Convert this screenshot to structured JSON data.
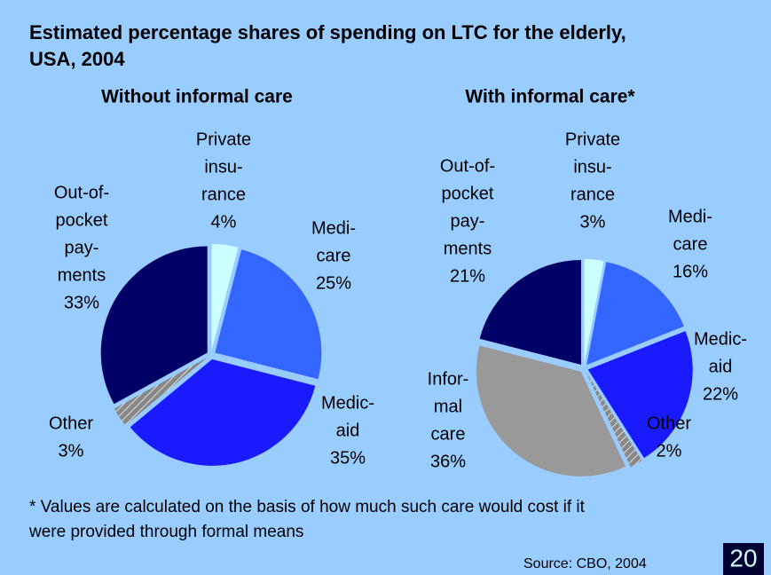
{
  "title": [
    "Estimated percentage shares of spending on LTC for the elderly,",
    "USA, 2004"
  ],
  "chart_data": [
    {
      "type": "pie",
      "title": "Without informal care",
      "categories": [
        [
          "Private",
          "insu-",
          "rance"
        ],
        [
          "Medi-",
          "care"
        ],
        [
          "Medic-",
          "aid"
        ],
        [
          "Other"
        ],
        [
          "Out-of-",
          "pocket",
          "pay-",
          "ments"
        ]
      ],
      "values": [
        4,
        25,
        35,
        3,
        33
      ],
      "value_labels": [
        "4%",
        "25%",
        "35%",
        "3%",
        "33%"
      ],
      "colors": [
        "#ccffff",
        "#3366ff",
        "#1a1aff",
        "hatch",
        "#000066"
      ]
    },
    {
      "type": "pie",
      "title": "With informal care*",
      "categories": [
        [
          "Private",
          "insu-",
          "rance"
        ],
        [
          "Medi-",
          "care"
        ],
        [
          "Medic-",
          "aid"
        ],
        [
          "Other"
        ],
        [
          "Infor-",
          "mal",
          "care"
        ],
        [
          "Out-of-",
          "pocket",
          "pay-",
          "ments"
        ]
      ],
      "values": [
        3,
        16,
        22,
        2,
        36,
        21
      ],
      "value_labels": [
        "3%",
        "16%",
        "22%",
        "2%",
        "36%",
        "21%"
      ],
      "colors": [
        "#ccffff",
        "#3366ff",
        "#1a1aff",
        "hatch",
        "#999999",
        "#000066"
      ]
    }
  ],
  "footnote": [
    "* Values are calculated on the basis of how much such care would cost if it",
    "were provided through formal means"
  ],
  "source": "Source: CBO, 2004",
  "page": "20"
}
